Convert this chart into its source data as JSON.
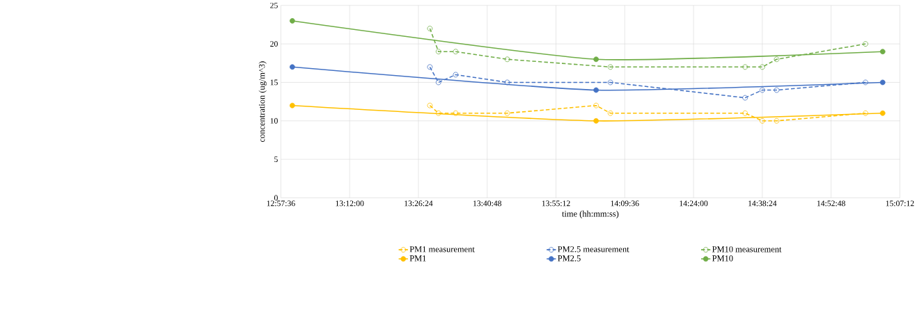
{
  "chart_data": {
    "type": "line",
    "xlabel": "time (hh:mm:ss)",
    "ylabel": "concentration (ug/m^3)",
    "xlim": [
      12.96,
      15.12
    ],
    "ylim": [
      0,
      25
    ],
    "xticks": [
      {
        "value": 12.96,
        "label": "12:57:36"
      },
      {
        "value": 13.2,
        "label": "13:12:00"
      },
      {
        "value": 13.44,
        "label": "13:26:24"
      },
      {
        "value": 13.68,
        "label": "13:40:48"
      },
      {
        "value": 13.92,
        "label": "13:55:12"
      },
      {
        "value": 14.16,
        "label": "14:09:36"
      },
      {
        "value": 14.4,
        "label": "14:24:00"
      },
      {
        "value": 14.64,
        "label": "14:38:24"
      },
      {
        "value": 14.88,
        "label": "14:52:48"
      },
      {
        "value": 15.12,
        "label": "15:07:12"
      }
    ],
    "yticks": [
      0,
      5,
      10,
      15,
      20,
      25
    ],
    "grid": true,
    "legend": "bottom",
    "marker": "circle",
    "series": [
      {
        "name": "PM1 measurement",
        "color": "#ffc000",
        "line_style": "dashed",
        "x": [
          13.48,
          13.51,
          13.57,
          13.75,
          14.06,
          14.11,
          14.58,
          14.64,
          14.69,
          15.0
        ],
        "values": [
          12,
          11,
          11,
          11,
          12,
          11,
          11,
          10,
          10,
          11
        ]
      },
      {
        "name": "PM2.5 measurement",
        "color": "#4472c4",
        "line_style": "dashed",
        "x": [
          13.48,
          13.51,
          13.57,
          13.75,
          14.11,
          14.58,
          14.64,
          14.69,
          15.0
        ],
        "values": [
          17,
          15,
          16,
          15,
          15,
          13,
          14,
          14,
          15
        ]
      },
      {
        "name": "PM10 measurement",
        "color": "#70ad47",
        "line_style": "dashed",
        "x": [
          13.48,
          13.51,
          13.57,
          13.75,
          14.11,
          14.58,
          14.64,
          14.69,
          15.0
        ],
        "values": [
          22,
          19,
          19,
          18,
          17,
          17,
          17,
          18,
          20
        ]
      },
      {
        "name": "PM1",
        "color": "#ffc000",
        "line_style": "solid",
        "x": [
          13.0,
          14.06,
          15.06
        ],
        "values": [
          12,
          10,
          11
        ]
      },
      {
        "name": "PM2.5",
        "color": "#4472c4",
        "line_style": "solid",
        "x": [
          13.0,
          14.06,
          15.06
        ],
        "values": [
          17,
          14,
          15
        ]
      },
      {
        "name": "PM10",
        "color": "#70ad47",
        "line_style": "solid",
        "x": [
          13.0,
          14.06,
          15.06
        ],
        "values": [
          23,
          18,
          19
        ]
      }
    ]
  }
}
